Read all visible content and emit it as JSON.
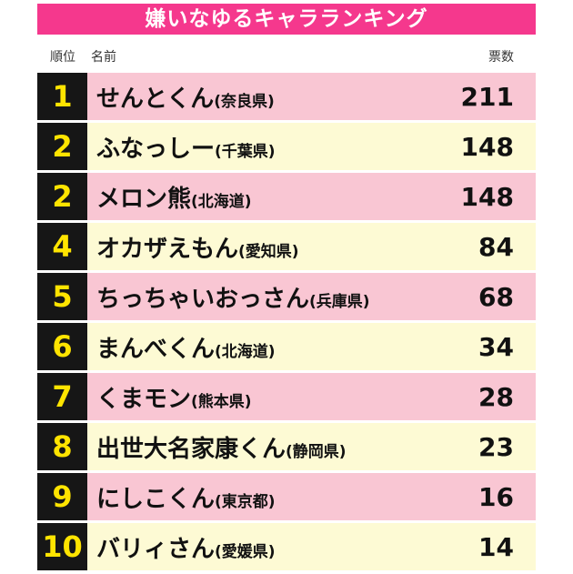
{
  "title": "嫌いなゆるキャラランキング",
  "header": {
    "rank": "順位",
    "name": "名前",
    "votes": "票数"
  },
  "rows": [
    {
      "rank": "1",
      "name": "せんとくん",
      "pref": "(奈良県)",
      "votes": "211"
    },
    {
      "rank": "2",
      "name": "ふなっしー",
      "pref": "(千葉県)",
      "votes": "148"
    },
    {
      "rank": "2",
      "name": "メロン熊",
      "pref": "(北海道)",
      "votes": "148"
    },
    {
      "rank": "4",
      "name": "オカザえもん",
      "pref": "(愛知県)",
      "votes": "84"
    },
    {
      "rank": "5",
      "name": "ちっちゃいおっさん",
      "pref": "(兵庫県)",
      "votes": "68"
    },
    {
      "rank": "6",
      "name": "まんべくん",
      "pref": "(北海道)",
      "votes": "34"
    },
    {
      "rank": "7",
      "name": "くまモン",
      "pref": "(熊本県)",
      "votes": "28"
    },
    {
      "rank": "8",
      "name": "出世大名家康くん",
      "pref": "(静岡県)",
      "votes": "23"
    },
    {
      "rank": "9",
      "name": "にしこくん",
      "pref": "(東京都)",
      "votes": "16"
    },
    {
      "rank": "10",
      "name": "バリィさん",
      "pref": "(愛媛県)",
      "votes": "14"
    }
  ],
  "colors": {
    "title_bg": "#f5388d",
    "title_text": "#ffffff",
    "row_pink": "#f9c6d3",
    "row_cream": "#fdfad4",
    "rank_bg": "#161616",
    "rank_number": "#ffe400",
    "body_text": "#111111"
  },
  "chart_data": {
    "type": "table",
    "title": "嫌いなゆるキャラランキング",
    "columns": [
      "順位",
      "名前",
      "票数"
    ],
    "rows": [
      [
        1,
        "せんとくん(奈良県)",
        211
      ],
      [
        2,
        "ふなっしー(千葉県)",
        148
      ],
      [
        2,
        "メロン熊(北海道)",
        148
      ],
      [
        4,
        "オカザえもん(愛知県)",
        84
      ],
      [
        5,
        "ちっちゃいおっさん(兵庫県)",
        68
      ],
      [
        6,
        "まんべくん(北海道)",
        34
      ],
      [
        7,
        "くまモン(熊本県)",
        28
      ],
      [
        8,
        "出世大名家康くん(静岡県)",
        23
      ],
      [
        9,
        "にしこくん(東京都)",
        16
      ],
      [
        10,
        "バリィさん(愛媛県)",
        14
      ]
    ]
  }
}
